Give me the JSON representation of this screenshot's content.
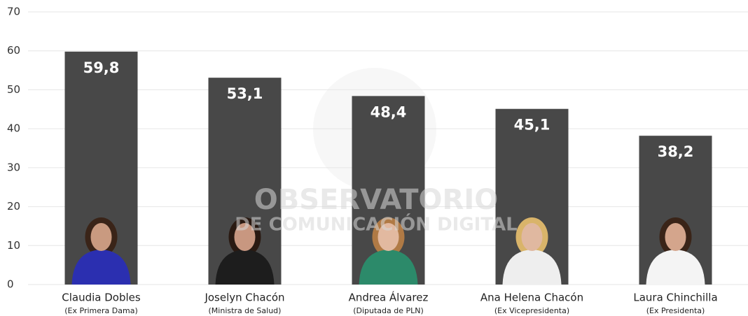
{
  "chart_data": {
    "type": "bar",
    "categories": [
      "Claudia Dobles",
      "Joselyn Chacón",
      "Andrea Álvarez",
      "Ana Helena Chacón",
      "Laura Chinchilla"
    ],
    "category_subtitles": [
      "(Ex Primera Dama)",
      "(Ministra de Salud)",
      "(Diputada de PLN)",
      "(Ex Vicepresidenta)",
      "(Ex Presidenta)"
    ],
    "values": [
      59.8,
      53.1,
      48.4,
      45.1,
      38.2
    ],
    "value_labels": [
      "59,8",
      "53,1",
      "48,4",
      "45,1",
      "38,2"
    ],
    "color": "#484848",
    "ylim": [
      0,
      70
    ],
    "yticks": [
      0,
      10,
      20,
      30,
      40,
      50,
      60,
      70
    ],
    "grid": true,
    "watermark": [
      "OBSERVATORIO",
      "DE COMUNICACIÓN DIGITAL"
    ]
  }
}
